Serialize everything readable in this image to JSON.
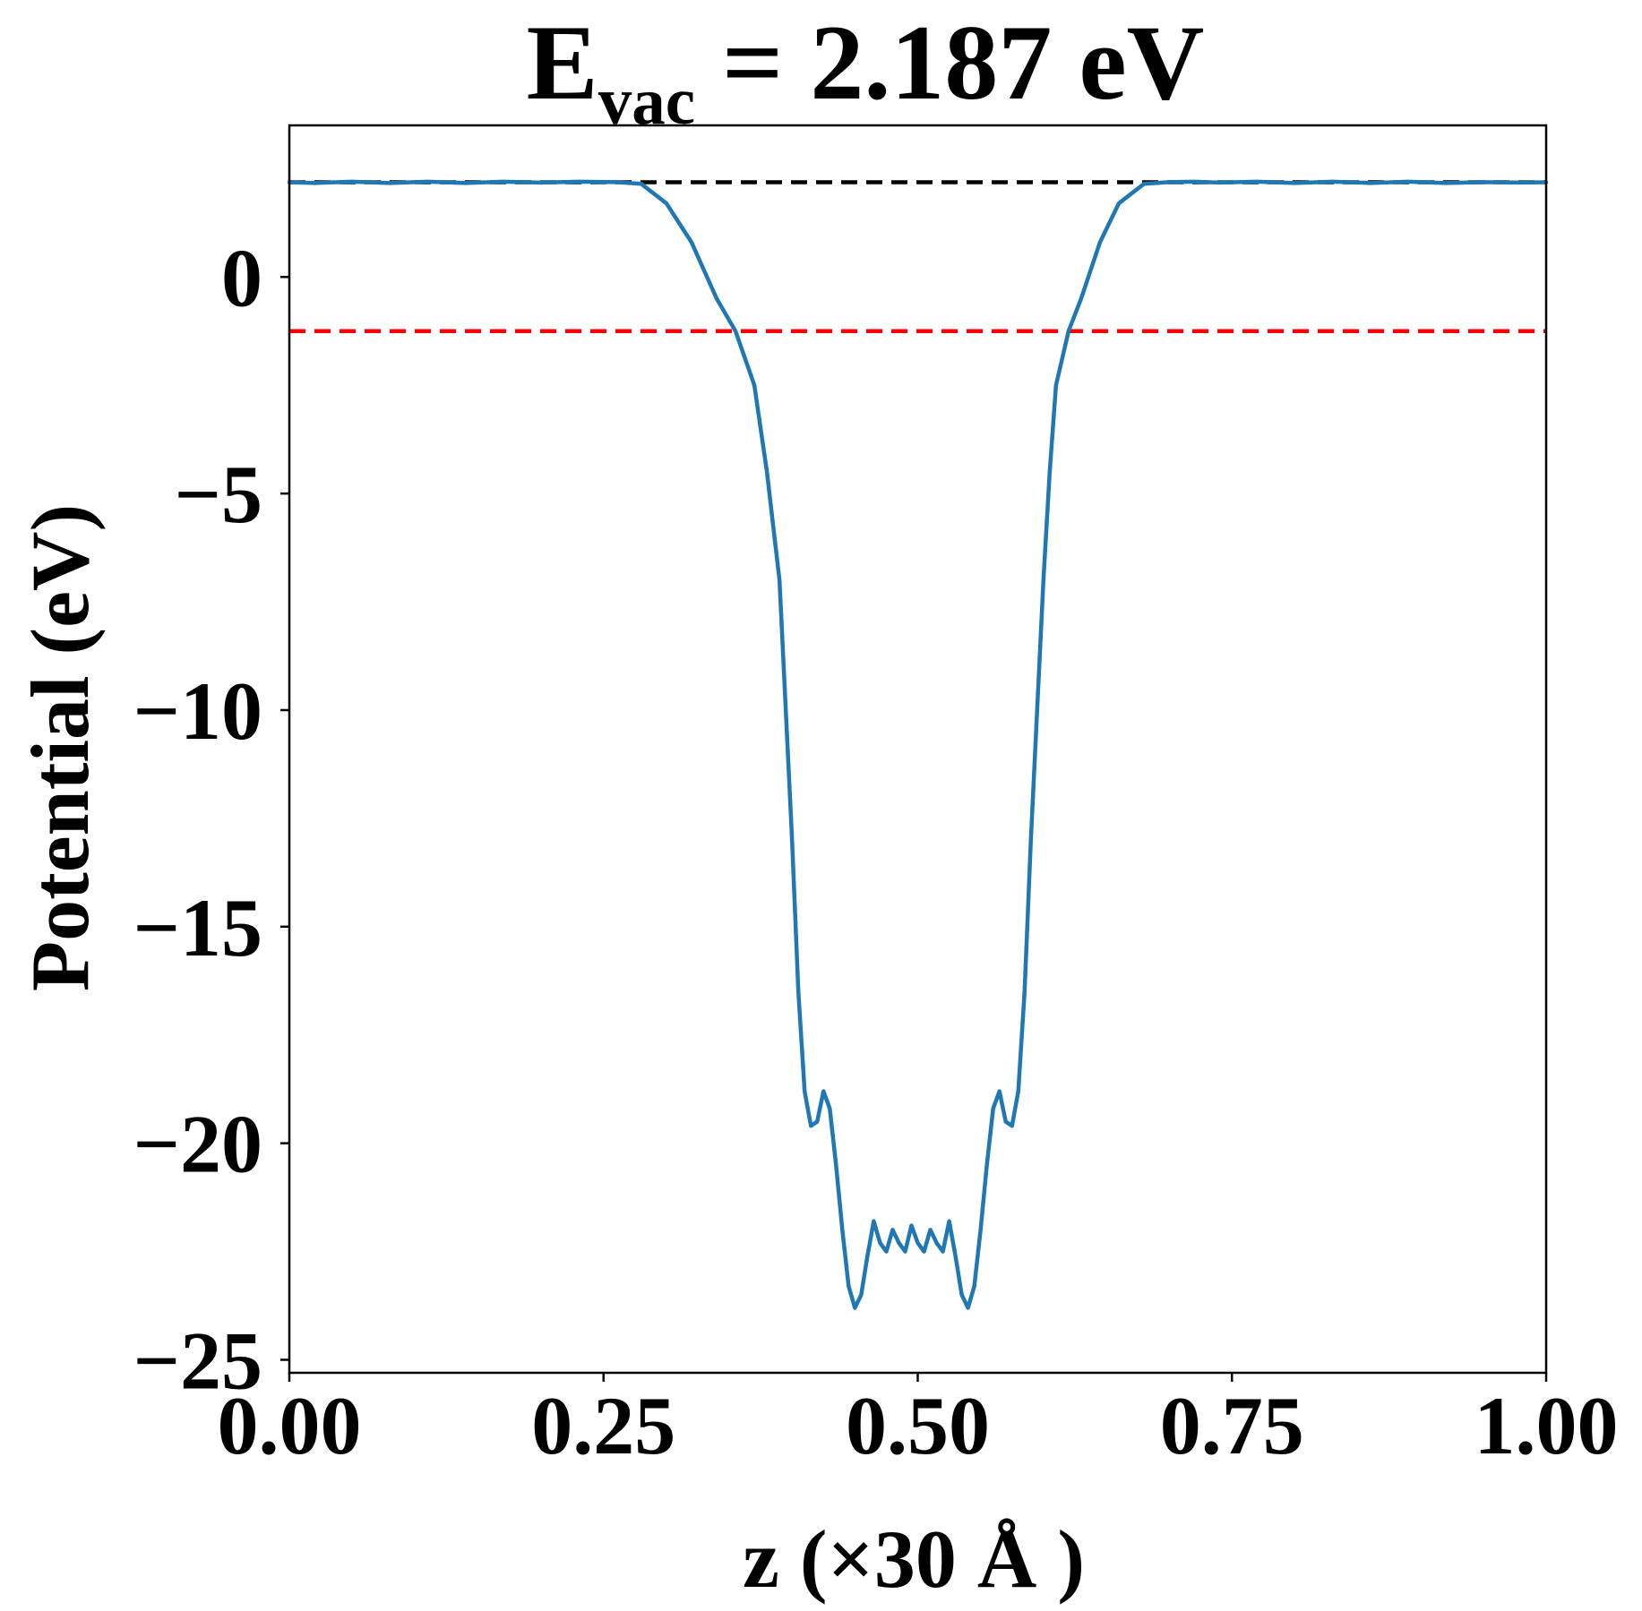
{
  "chart_data": {
    "type": "line",
    "title": {
      "main": "E",
      "subscript": "vac",
      "rest": " = 2.187 eV"
    },
    "xlabel": "z (×30 Å )",
    "ylabel": "Potential (eV)",
    "xlim": [
      0,
      1
    ],
    "ylim": [
      -25.3,
      3.5
    ],
    "x_ticks": [
      0.0,
      0.25,
      0.5,
      0.75,
      1.0
    ],
    "x_tick_labels": [
      "0.00",
      "0.25",
      "0.50",
      "0.75",
      "1.00"
    ],
    "y_ticks": [
      0,
      -5,
      -10,
      -15,
      -20,
      -25
    ],
    "y_tick_labels": [
      "0",
      "−5",
      "−10",
      "−15",
      "−20",
      "−25"
    ],
    "grid": false,
    "legend": "none",
    "reference_lines": [
      {
        "value": 2.187,
        "color": "#000000",
        "style": "dashed"
      },
      {
        "value": -1.25,
        "color": "#ff0000",
        "style": "dashed"
      }
    ],
    "series": [
      {
        "color": "#1f77b4",
        "x": [
          0.0,
          0.02,
          0.05,
          0.08,
          0.11,
          0.14,
          0.17,
          0.2,
          0.23,
          0.26,
          0.28,
          0.3,
          0.32,
          0.34,
          0.355,
          0.37,
          0.38,
          0.39,
          0.395,
          0.4,
          0.405,
          0.41,
          0.415,
          0.42,
          0.425,
          0.43,
          0.435,
          0.44,
          0.445,
          0.45,
          0.455,
          0.46,
          0.465,
          0.47,
          0.475,
          0.48,
          0.485,
          0.49,
          0.495,
          0.5,
          0.505,
          0.51,
          0.515,
          0.52,
          0.525,
          0.53,
          0.535,
          0.54,
          0.545,
          0.55,
          0.555,
          0.56,
          0.565,
          0.57,
          0.575,
          0.58,
          0.585,
          0.59,
          0.595,
          0.6,
          0.605,
          0.61,
          0.62,
          0.63,
          0.645,
          0.66,
          0.68,
          0.7,
          0.72,
          0.74,
          0.77,
          0.8,
          0.83,
          0.86,
          0.89,
          0.92,
          0.95,
          0.98,
          1.0
        ],
        "y": [
          2.187,
          2.17,
          2.2,
          2.17,
          2.2,
          2.17,
          2.2,
          2.18,
          2.2,
          2.19,
          2.15,
          1.7,
          0.8,
          -0.5,
          -1.25,
          -2.5,
          -4.5,
          -7.0,
          -10.0,
          -13.0,
          -16.5,
          -18.8,
          -19.6,
          -19.5,
          -18.8,
          -19.2,
          -20.5,
          -22.0,
          -23.3,
          -23.8,
          -23.5,
          -22.6,
          -21.8,
          -22.3,
          -22.5,
          -22.0,
          -22.3,
          -22.5,
          -21.9,
          -22.3,
          -22.5,
          -22.0,
          -22.3,
          -22.5,
          -21.8,
          -22.6,
          -23.5,
          -23.8,
          -23.3,
          -22.0,
          -20.5,
          -19.2,
          -18.8,
          -19.5,
          -19.6,
          -18.8,
          -16.5,
          -13.0,
          -10.0,
          -7.0,
          -4.5,
          -2.5,
          -1.25,
          -0.5,
          0.8,
          1.7,
          2.15,
          2.19,
          2.2,
          2.18,
          2.2,
          2.17,
          2.2,
          2.17,
          2.2,
          2.17,
          2.19,
          2.18,
          2.187
        ]
      }
    ]
  }
}
